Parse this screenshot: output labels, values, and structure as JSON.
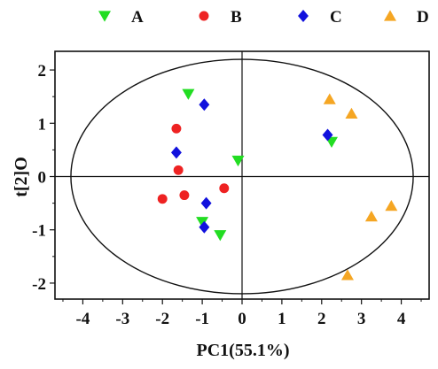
{
  "chart_data": {
    "type": "scatter",
    "title": "",
    "xlabel": "PC1(55.1%)",
    "ylabel": "t[2]O",
    "xlim": [
      -4.7,
      4.7
    ],
    "ylim": [
      -2.3,
      2.35
    ],
    "x_ticks": [
      -4,
      -3,
      -2,
      -1,
      0,
      1,
      2,
      3,
      4
    ],
    "y_ticks": [
      2,
      1,
      0,
      -1,
      -2
    ],
    "grid": false,
    "legend_position": "top",
    "ellipse": {
      "cx": 0,
      "cy": 0,
      "rx": 4.3,
      "ry": 2.2
    },
    "series": [
      {
        "name": "A",
        "marker": "triangle-down",
        "color": "#22dd22",
        "points": [
          {
            "x": -1.35,
            "y": 1.55
          },
          {
            "x": -0.1,
            "y": 0.3
          },
          {
            "x": 2.25,
            "y": 0.65
          },
          {
            "x": -1.0,
            "y": -0.85
          },
          {
            "x": -0.55,
            "y": -1.1
          }
        ]
      },
      {
        "name": "B",
        "marker": "circle",
        "color": "#ee2222",
        "points": [
          {
            "x": -1.65,
            "y": 0.9
          },
          {
            "x": -1.6,
            "y": 0.12
          },
          {
            "x": -2.0,
            "y": -0.42
          },
          {
            "x": -1.45,
            "y": -0.35
          },
          {
            "x": -0.45,
            "y": -0.22
          }
        ]
      },
      {
        "name": "C",
        "marker": "diamond",
        "color": "#1111dd",
        "points": [
          {
            "x": -0.95,
            "y": 1.35
          },
          {
            "x": -1.65,
            "y": 0.45
          },
          {
            "x": 2.15,
            "y": 0.78
          },
          {
            "x": -0.9,
            "y": -0.5
          },
          {
            "x": -0.95,
            "y": -0.95
          }
        ]
      },
      {
        "name": "D",
        "marker": "triangle-up",
        "color": "#f5a623",
        "points": [
          {
            "x": 2.2,
            "y": 1.45
          },
          {
            "x": 2.75,
            "y": 1.18
          },
          {
            "x": 3.25,
            "y": -0.75
          },
          {
            "x": 3.75,
            "y": -0.55
          },
          {
            "x": 2.65,
            "y": -1.85
          }
        ]
      }
    ]
  }
}
